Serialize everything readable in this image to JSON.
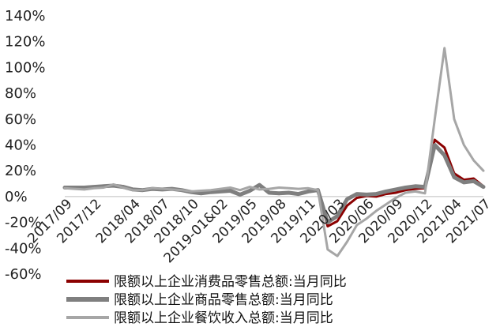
{
  "chart_data": {
    "type": "line",
    "title": "",
    "xlabel": "",
    "ylabel": "",
    "ylim": [
      -60,
      140
    ],
    "y_ticks": [
      -60,
      -40,
      -20,
      0,
      20,
      40,
      60,
      80,
      100,
      120,
      140
    ],
    "y_tick_labels": [
      "-60%",
      "-40%",
      "-20%",
      "0%",
      "20%",
      "40%",
      "60%",
      "80%",
      "100%",
      "120%",
      "140%"
    ],
    "x": [
      "2017/09",
      "2017/10",
      "2017/11",
      "2017/12",
      "2018/01",
      "2018/02",
      "2018/03",
      "2018/04",
      "2018/05",
      "2018/06",
      "2018/07",
      "2018/08",
      "2018/09",
      "2018/10",
      "2018/11",
      "2018/12",
      "2019/01&02",
      "2019/03",
      "2019/04",
      "2019/05",
      "2019/06",
      "2019/07",
      "2019/08",
      "2019/09",
      "2019/10",
      "2019/11",
      "2019/12",
      "2020/01&02",
      "2020/03",
      "2020/04",
      "2020/05",
      "2020/06",
      "2020/07",
      "2020/08",
      "2020/09",
      "2020/10",
      "2020/11",
      "2020/12",
      "2021/01&02",
      "2021/03",
      "2021/04",
      "2021/05",
      "2021/06",
      "2021/07"
    ],
    "x_tick_labels": [
      "2017/09",
      "2017/12",
      "2018/04",
      "2018/07",
      "2018/10",
      "2019-01&02",
      "2019/05",
      "2019/08",
      "2019/11",
      "2020/03",
      "2020/06",
      "2020/09",
      "2020/12",
      "2021/04",
      "2021/07"
    ],
    "x_tick_indices": [
      0,
      3,
      7,
      10,
      13,
      16,
      19,
      22,
      25,
      28,
      31,
      34,
      37,
      40,
      43
    ],
    "grid": false,
    "legend_position": "bottom",
    "series": [
      {
        "name": "限额以上企业消费品零售总额:当月同比",
        "color": "#8b0000",
        "width": 3,
        "values": [
          7.5,
          7.0,
          7.5,
          7.0,
          8.0,
          9.0,
          8.0,
          6.0,
          5.0,
          6.0,
          5.5,
          6.0,
          5.0,
          3.5,
          3.0,
          3.5,
          4.0,
          5.0,
          2.0,
          4.5,
          8.5,
          3.5,
          2.0,
          3.0,
          1.5,
          4.0,
          5.0,
          -23.0,
          -19.0,
          -7.0,
          -1.0,
          0.5,
          0.0,
          2.0,
          3.0,
          5.0,
          6.0,
          6.5,
          44.0,
          38.0,
          18.0,
          13.0,
          14.0,
          8.0
        ]
      },
      {
        "name": "限额以上企业商品零售总额:当月同比",
        "color": "#7f7f7f",
        "width": 5,
        "values": [
          7.0,
          7.0,
          7.0,
          7.5,
          8.0,
          8.5,
          7.5,
          5.5,
          5.0,
          6.0,
          5.5,
          6.0,
          5.0,
          3.5,
          2.5,
          3.5,
          4.0,
          4.5,
          1.5,
          4.5,
          9.0,
          3.0,
          2.5,
          3.0,
          2.0,
          4.0,
          5.0,
          -20.0,
          -15.0,
          -2.0,
          2.0,
          1.5,
          2.0,
          4.0,
          5.5,
          7.0,
          8.0,
          7.5,
          40.0,
          32.0,
          15.0,
          11.0,
          12.0,
          7.5
        ]
      },
      {
        "name": "限额以上企业餐饮收入总额:当月同比",
        "color": "#a6a6a6",
        "width": 3,
        "values": [
          6.5,
          6.0,
          5.5,
          6.5,
          7.0,
          9.5,
          7.0,
          5.0,
          5.0,
          6.5,
          6.0,
          5.5,
          5.0,
          4.0,
          4.5,
          5.0,
          6.0,
          7.0,
          5.0,
          7.5,
          5.5,
          6.0,
          7.0,
          6.5,
          6.0,
          6.5,
          5.0,
          -41.0,
          -46.0,
          -35.0,
          -22.0,
          -17.0,
          -11.0,
          -6.0,
          -1.0,
          3.0,
          4.0,
          2.5,
          60.0,
          115.0,
          60.0,
          40.0,
          28.0,
          20.0
        ]
      }
    ]
  }
}
